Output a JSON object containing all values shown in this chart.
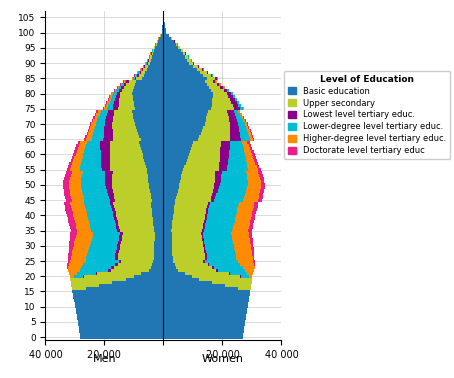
{
  "colors": {
    "basic": "#2077B4",
    "upper_sec": "#BCCE2A",
    "lowest_tert": "#8B008B",
    "lower_tert": "#00BCD4",
    "higher_tert": "#FF8C00",
    "doctorate": "#E91E8C"
  },
  "legend_labels": [
    "Basic education",
    "Upper secondary",
    "Lowest level tertiary educ.",
    "Lower-degree level tertiary educ.",
    "Higher-degree level tertiary educ.",
    "Doctorate level tertiary educ"
  ],
  "legend_title": "Level of Education",
  "xlim": [
    -40000,
    40000
  ],
  "ylim": [
    -1,
    107
  ],
  "xticks": [
    -40000,
    -20000,
    0,
    20000,
    40000
  ],
  "xtick_labels": [
    "40 000",
    "20 000",
    "",
    "20 000",
    "40 000"
  ],
  "background_color": "#ffffff",
  "grid_color": "#cccccc",
  "xlabel_left": "Men",
  "xlabel_right": "Women"
}
